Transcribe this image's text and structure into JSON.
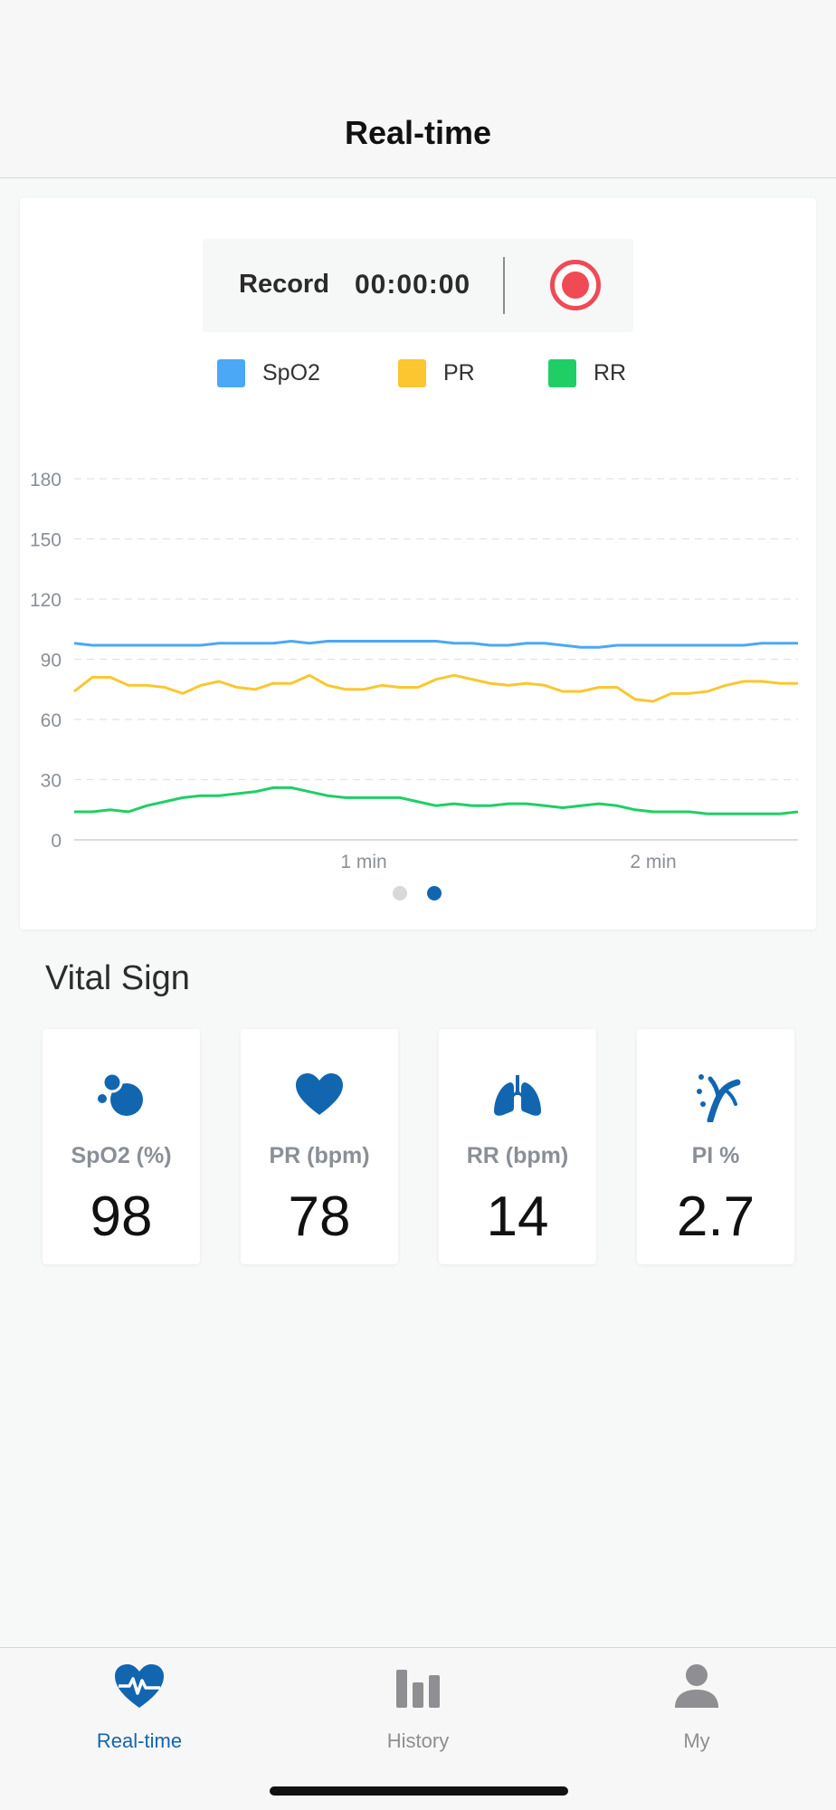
{
  "header": {
    "title": "Real-time"
  },
  "record": {
    "label": "Record",
    "elapsed": "00:00:00"
  },
  "legend": [
    {
      "label": "SpO2",
      "color": "#4aa8f7"
    },
    {
      "label": "PR",
      "color": "#fbc62f"
    },
    {
      "label": "RR",
      "color": "#1fcf66"
    }
  ],
  "chart_data": {
    "type": "line",
    "title": "",
    "xlabel": "",
    "ylabel": "",
    "ylim": [
      0,
      180
    ],
    "yticks": [
      0,
      30,
      60,
      90,
      120,
      150,
      180
    ],
    "xlim": [
      0,
      2.5
    ],
    "xticks": [
      {
        "value": 1,
        "label": "1 min"
      },
      {
        "value": 2,
        "label": "2 min"
      }
    ],
    "grid": true,
    "x": [
      0,
      0.0625,
      0.125,
      0.1875,
      0.25,
      0.3125,
      0.375,
      0.4375,
      0.5,
      0.5625,
      0.625,
      0.6875,
      0.75,
      0.8125,
      0.875,
      0.9375,
      1.0,
      1.0625,
      1.125,
      1.1875,
      1.25,
      1.3125,
      1.375,
      1.4375,
      1.5,
      1.5625,
      1.625,
      1.6875,
      1.75,
      1.8125,
      1.875,
      1.9375,
      2.0,
      2.0625,
      2.125,
      2.1875,
      2.25,
      2.3125,
      2.375,
      2.4375,
      2.5
    ],
    "series": [
      {
        "name": "SpO2",
        "color": "#4aa8f7",
        "values": [
          98,
          97,
          97,
          97,
          97,
          97,
          97,
          97,
          98,
          98,
          98,
          98,
          99,
          98,
          99,
          99,
          99,
          99,
          99,
          99,
          99,
          98,
          98,
          97,
          97,
          98,
          98,
          97,
          96,
          96,
          97,
          97,
          97,
          97,
          97,
          97,
          97,
          97,
          98,
          98,
          98
        ]
      },
      {
        "name": "PR",
        "color": "#fbc62f",
        "values": [
          74,
          81,
          81,
          77,
          77,
          76,
          73,
          77,
          79,
          76,
          75,
          78,
          78,
          82,
          77,
          75,
          75,
          77,
          76,
          76,
          80,
          82,
          80,
          78,
          77,
          78,
          77,
          74,
          74,
          76,
          76,
          70,
          69,
          73,
          73,
          74,
          77,
          79,
          79,
          78,
          78
        ]
      },
      {
        "name": "RR",
        "color": "#1fcf66",
        "values": [
          14,
          14,
          15,
          14,
          17,
          19,
          21,
          22,
          22,
          23,
          24,
          26,
          26,
          24,
          22,
          21,
          21,
          21,
          21,
          19,
          17,
          18,
          17,
          17,
          18,
          18,
          17,
          16,
          17,
          18,
          17,
          15,
          14,
          14,
          14,
          13,
          13,
          13,
          13,
          13,
          14
        ]
      }
    ]
  },
  "pager": {
    "pages": 2,
    "active": 1
  },
  "vitals": {
    "section_title": "Vital Sign",
    "items": [
      {
        "label": "SpO2 (%)",
        "value": "98",
        "icon": "spo2-bubbles-icon"
      },
      {
        "label": "PR (bpm)",
        "value": "78",
        "icon": "heart-icon"
      },
      {
        "label": "RR (bpm)",
        "value": "14",
        "icon": "lungs-icon"
      },
      {
        "label": "PI %",
        "value": "2.7",
        "icon": "perfusion-icon"
      }
    ]
  },
  "tabs": [
    {
      "label": "Real-time",
      "icon": "heart-pulse-icon",
      "active": true
    },
    {
      "label": "History",
      "icon": "bar-chart-icon",
      "active": false
    },
    {
      "label": "My",
      "icon": "person-icon",
      "active": false
    }
  ],
  "colors": {
    "accent": "#1266b0",
    "inactive": "#8e8e93",
    "record": "#f04a55"
  }
}
